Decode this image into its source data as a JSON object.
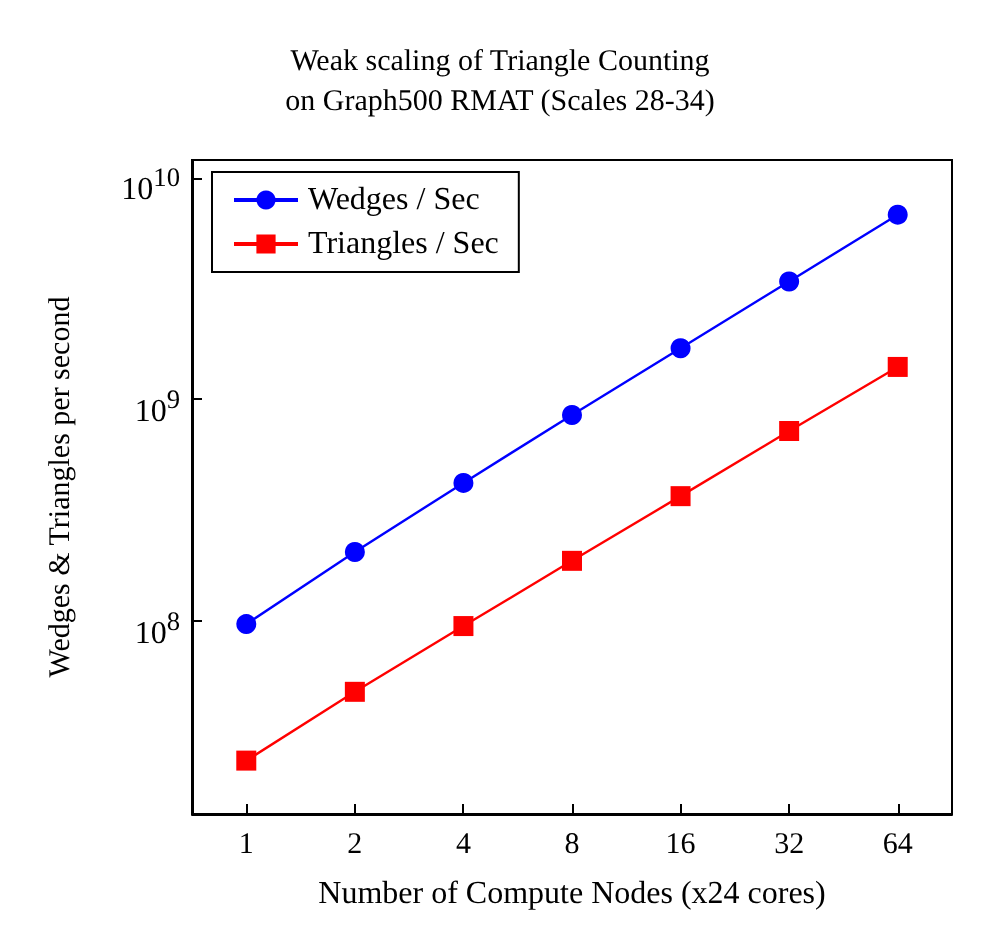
{
  "chart_data": {
    "type": "line",
    "title": "Weak scaling of Triangle Counting\non Graph500 RMAT (Scales 28-34)",
    "xlabel": "Number of Compute Nodes (x24 cores)",
    "ylabel": "Wedges & Triangles per second",
    "categories": [
      "1",
      "2",
      "4",
      "8",
      "16",
      "32",
      "64"
    ],
    "series": [
      {
        "name": "Wedges / Sec",
        "color": "#0000ff",
        "marker": "circle",
        "values": [
          97000000,
          205000000,
          420000000,
          850000000,
          1700000000,
          3400000000,
          6800000000
        ]
      },
      {
        "name": "Triangles / Sec",
        "color": "#ff0000",
        "marker": "square",
        "values": [
          23500000,
          48000000,
          95000000,
          187000000,
          366000000,
          720000000,
          1400000000
        ]
      }
    ],
    "log": "y",
    "ylim": [
      13500000,
      12000000000
    ],
    "yticks": [
      {
        "value": 100000000,
        "label": "10$^{8}$"
      },
      {
        "value": 1000000000,
        "label": "10$^{9}$"
      },
      {
        "value": 10000000000,
        "label": "10$^{10}$"
      }
    ],
    "grid": false,
    "legend": "top left",
    "line_style": "solid"
  }
}
